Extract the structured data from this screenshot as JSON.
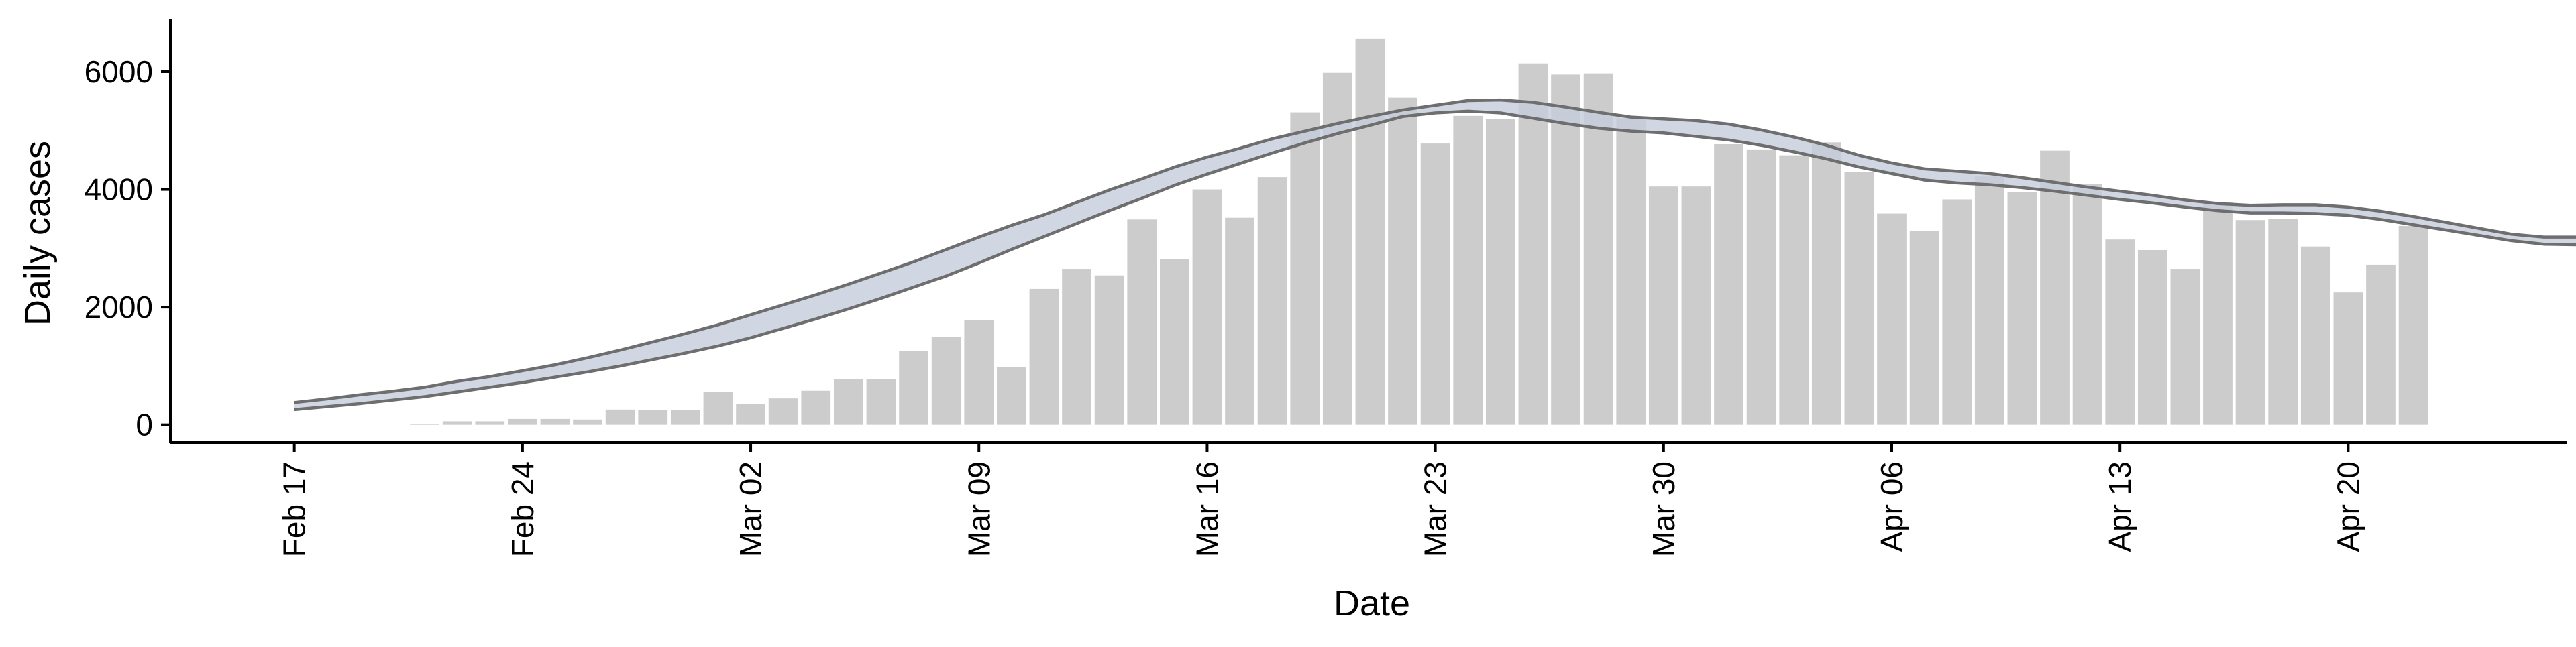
{
  "chart_data": {
    "type": "bar",
    "xlabel": "Date",
    "ylabel": "Daily cases",
    "x_ticks": [
      "Feb 17",
      "Feb 24",
      "Mar 02",
      "Mar 09",
      "Mar 16",
      "Mar 23",
      "Mar 30",
      "Apr 06",
      "Apr 13",
      "Apr 20"
    ],
    "y_ticks": [
      "0",
      "2000",
      "4000",
      "6000"
    ],
    "ylim": [
      -300,
      6900
    ],
    "xlim_days": [
      -3.8,
      69.7
    ],
    "grid": false,
    "legend": "none",
    "bar_series": {
      "start_date": "Feb 21",
      "values": [
        10,
        60,
        60,
        100,
        100,
        90,
        260,
        250,
        250,
        560,
        350,
        450,
        580,
        780,
        780,
        1250,
        1490,
        1780,
        980,
        2310,
        2650,
        2540,
        3490,
        2810,
        4000,
        3520,
        4210,
        5310,
        5980,
        6560,
        5560,
        4780,
        5250,
        5200,
        6140,
        5950,
        5970,
        5210,
        4050,
        4050,
        4770,
        4680,
        4580,
        4800,
        4300,
        3590,
        3300,
        3830,
        4220,
        3950,
        4660,
        4090,
        3150,
        2970,
        2650,
        3780,
        3480,
        3500,
        3030,
        2250,
        2720,
        3380
      ]
    },
    "estimate_series": {
      "start_date": "Feb 17",
      "upper": [
        380,
        440,
        510,
        570,
        640,
        740,
        820,
        920,
        1020,
        1140,
        1270,
        1410,
        1550,
        1700,
        1870,
        2040,
        2210,
        2390,
        2580,
        2770,
        2980,
        3190,
        3390,
        3570,
        3780,
        3990,
        4180,
        4380,
        4550,
        4700,
        4860,
        4990,
        5120,
        5240,
        5350,
        5430,
        5510,
        5520,
        5480,
        5400,
        5310,
        5230,
        5200,
        5170,
        5110,
        5010,
        4890,
        4750,
        4580,
        4450,
        4350,
        4310,
        4270,
        4200,
        4120,
        4040,
        3970,
        3900,
        3820,
        3760,
        3730,
        3740,
        3740,
        3700,
        3630,
        3540,
        3440,
        3340,
        3240,
        3190,
        3190,
        3200,
        3230,
        3230,
        3180,
        3110,
        3000
      ],
      "lower": [
        260,
        310,
        360,
        420,
        480,
        560,
        640,
        720,
        810,
        900,
        1000,
        1110,
        1220,
        1340,
        1480,
        1640,
        1800,
        1970,
        2150,
        2340,
        2530,
        2750,
        2980,
        3200,
        3420,
        3640,
        3850,
        4070,
        4260,
        4440,
        4620,
        4790,
        4950,
        5090,
        5240,
        5300,
        5330,
        5300,
        5210,
        5120,
        5040,
        4990,
        4960,
        4900,
        4840,
        4750,
        4640,
        4520,
        4380,
        4270,
        4160,
        4110,
        4080,
        4030,
        3970,
        3900,
        3830,
        3770,
        3700,
        3640,
        3600,
        3600,
        3590,
        3560,
        3490,
        3400,
        3310,
        3220,
        3130,
        3070,
        3060,
        3070,
        3090,
        3080,
        2990,
        2900,
        2780
      ]
    }
  },
  "colors": {
    "bar_fill": "#cccccc",
    "band_fill": "#c5ccdc",
    "line": "#6e6e6e",
    "axis": "#000000"
  }
}
